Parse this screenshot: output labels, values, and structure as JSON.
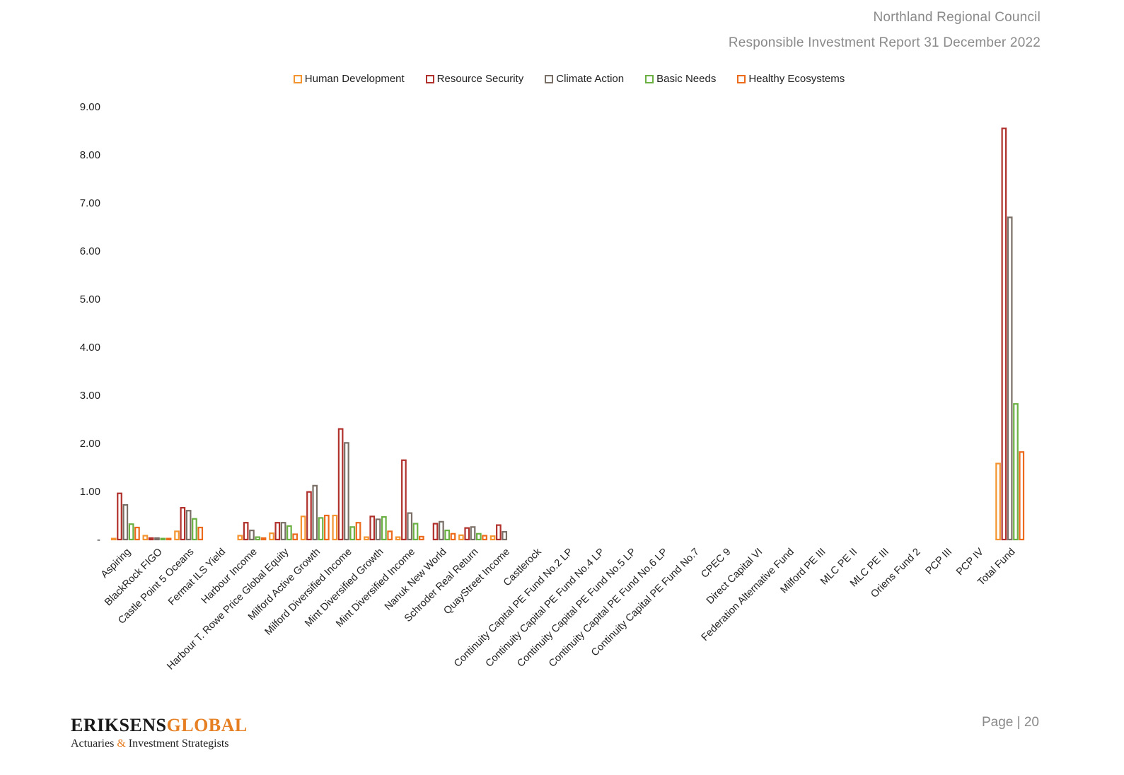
{
  "header": {
    "org": "Northland Regional Council",
    "report": "Responsible Investment Report 31 December 2022"
  },
  "footer": {
    "logo_part1": "ERIKSENS",
    "logo_part2": "GLOBAL",
    "tagline_a": "Actuaries",
    "tagline_amp": "&",
    "tagline_b": "Investment Strategists",
    "page_label": "Page | 20"
  },
  "colors": {
    "human_development": "#f39431",
    "resource_security": "#b0302c",
    "climate_action": "#7a6f66",
    "basic_needs": "#6ab043",
    "healthy_ecosystems": "#ec6a1b"
  },
  "chart_data": {
    "type": "bar",
    "title": "",
    "xlabel": "",
    "ylabel": "",
    "ylim": [
      0,
      9
    ],
    "yticks": [
      0,
      1,
      2,
      3,
      4,
      5,
      6,
      7,
      8,
      9
    ],
    "ytick_labels": [
      "-",
      "1.00",
      "2.00",
      "3.00",
      "4.00",
      "5.00",
      "6.00",
      "7.00",
      "8.00",
      "9.00"
    ],
    "grid": false,
    "legend_position": "top-center",
    "categories": [
      "Aspiring",
      "BlackRock FIGO",
      "Castle Point 5 Oceans",
      "Fermat ILS Yield",
      "Harbour Income",
      "Harbour T. Rowe Price Global Equity",
      "Milford Active Growth",
      "Milford Diversified Income",
      "Mint Diversified Growth",
      "Mint Diversified Income",
      "Nanuk New World",
      "Schroder Real Return",
      "QuayStreet Income",
      "Castlerock",
      "Continuity Capital PE Fund No.2 LP",
      "Continuity Capital PE Fund No.4 LP",
      "Continuity Capital PE Fund No.5 LP",
      "Continuity Capital PE Fund No.6 LP",
      "Continuity Capital PE Fund No.7",
      "CPEC 9",
      "Direct Capital VI",
      "Federation Alternative Fund",
      "Milford PE III",
      "MLC PE II",
      "MLC PE III",
      "Oriens Fund 2",
      "PCP III",
      "PCP IV",
      "Total Fund"
    ],
    "series": [
      {
        "name": "Human Development",
        "values": [
          0.02,
          0.08,
          0.17,
          0,
          0.08,
          0.13,
          0.48,
          0.5,
          0.05,
          0.05,
          0,
          0.09,
          0.07,
          0,
          0,
          0,
          0,
          0,
          0,
          0,
          0,
          0,
          0,
          0,
          0,
          0,
          0,
          0,
          1.58
        ]
      },
      {
        "name": "Resource Security",
        "values": [
          0.96,
          0.03,
          0.66,
          0,
          0.35,
          0.35,
          0.99,
          2.3,
          0.48,
          1.65,
          0.33,
          0.24,
          0.3,
          0,
          0,
          0,
          0,
          0,
          0,
          0,
          0,
          0,
          0,
          0,
          0,
          0,
          0,
          0,
          8.55
        ]
      },
      {
        "name": "Climate Action",
        "values": [
          0.72,
          0.03,
          0.6,
          0,
          0.19,
          0.35,
          1.12,
          2.01,
          0.42,
          0.55,
          0.37,
          0.26,
          0.16,
          0,
          0,
          0,
          0,
          0,
          0,
          0,
          0,
          0,
          0,
          0,
          0,
          0,
          0,
          0,
          6.7
        ]
      },
      {
        "name": "Basic Needs",
        "values": [
          0.32,
          0.02,
          0.43,
          0,
          0.05,
          0.28,
          0.45,
          0.26,
          0.47,
          0.33,
          0.19,
          0.12,
          0,
          0,
          0,
          0,
          0,
          0,
          0,
          0,
          0,
          0,
          0,
          0,
          0,
          0,
          0,
          0,
          2.82
        ]
      },
      {
        "name": "Healthy Ecosystems",
        "values": [
          0.25,
          0.02,
          0.25,
          0,
          0.03,
          0.11,
          0.5,
          0.35,
          0.17,
          0.06,
          0.12,
          0.08,
          0,
          0,
          0,
          0,
          0,
          0,
          0,
          0,
          0,
          0,
          0,
          0,
          0,
          0,
          0,
          0,
          1.82
        ]
      }
    ]
  }
}
